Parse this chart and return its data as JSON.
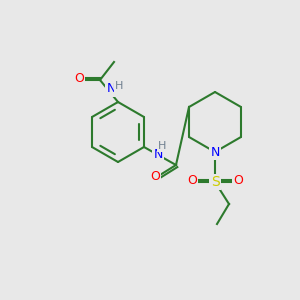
{
  "background_color": "#e8e8e8",
  "atom_colors": {
    "N": "#0000ff",
    "O": "#ff0000",
    "S": "#cccc00",
    "H": "#708090"
  },
  "bond_color": "#2d7a2d",
  "figsize": [
    3.0,
    3.0
  ],
  "dpi": 100
}
